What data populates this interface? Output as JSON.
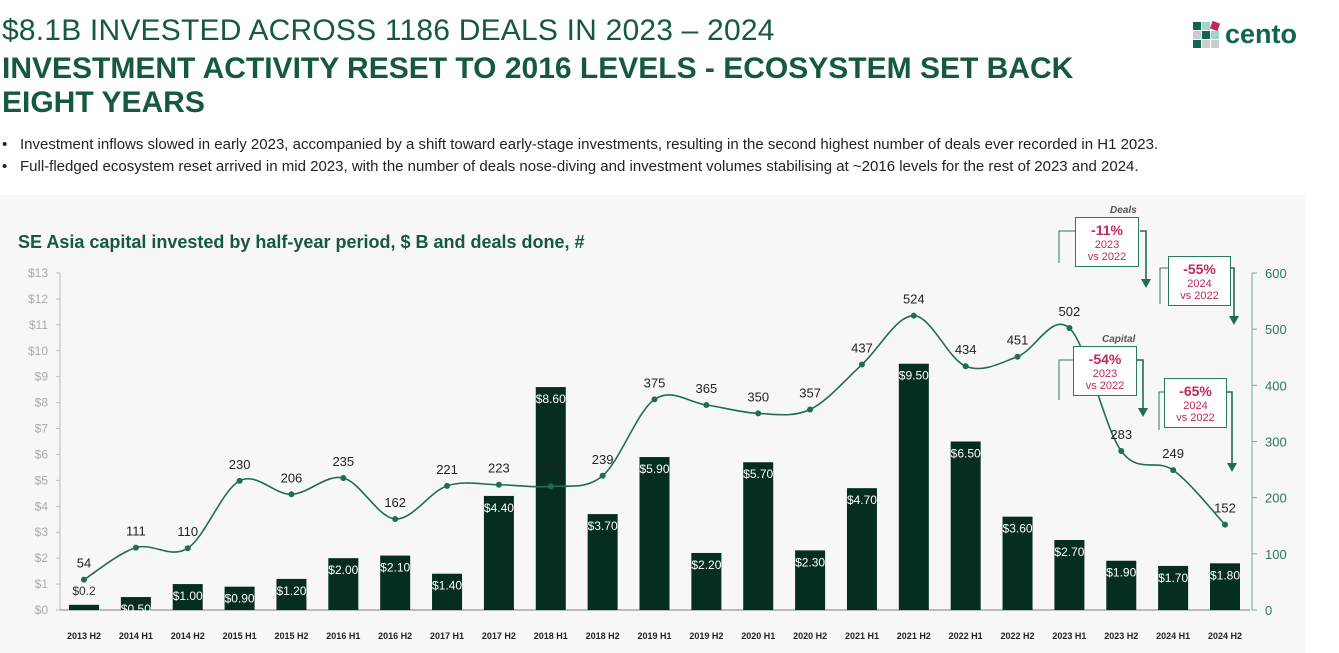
{
  "header": {
    "subtitle": "$8.1B INVESTED ACROSS 1186 DEALS IN 2023 – 2024",
    "title": "INVESTMENT ACTIVITY RESET TO 2016 LEVELS - ECOSYSTEM SET BACK EIGHT YEARS"
  },
  "logo": {
    "text": "cento"
  },
  "bullets": [
    "Investment inflows slowed in early 2023, accompanied by a shift toward early-stage investments, resulting in the second highest number of deals ever recorded in H1 2023.",
    "Full-fledged ecosystem reset arrived in mid 2023, with the number of deals nose-diving and investment volumes stabilising at ~2016 levels for the rest of 2023 and 2024."
  ],
  "annotations": {
    "deals_label": "Deals",
    "capital_label": "Capital",
    "deals_2023": {
      "pct": "-11%",
      "line1": "2023",
      "line2": "vs 2022"
    },
    "deals_2024": {
      "pct": "-55%",
      "line1": "2024",
      "line2": "vs 2022"
    },
    "capital_2023": {
      "pct": "-54%",
      "line1": "2023",
      "line2": "vs 2022"
    },
    "capital_2024": {
      "pct": "-65%",
      "line1": "2024",
      "line2": "vs 2022"
    }
  },
  "colors": {
    "bar": "#062d22",
    "line": "#1f6e4e",
    "title": "#155a3c",
    "accent": "#c0285a"
  },
  "chart_data": {
    "type": "bar+line",
    "title": "SE Asia capital invested by half-year period, $ B and deals done, #",
    "categories": [
      "2013 H2",
      "2014 H1",
      "2014 H2",
      "2015 H1",
      "2015 H2",
      "2016 H1",
      "2016 H2",
      "2017 H1",
      "2017 H2",
      "2018 H1",
      "2018 H2",
      "2019 H1",
      "2019 H2",
      "2020 H1",
      "2020 H2",
      "2021 H1",
      "2021 H2",
      "2022 H1",
      "2022 H2",
      "2023 H1",
      "2023 H2",
      "2024 H1",
      "2024 H2"
    ],
    "series": [
      {
        "name": "Capital invested ($B)",
        "axis": "left",
        "type": "bar",
        "values": [
          0.2,
          0.5,
          1.0,
          0.9,
          1.2,
          2.0,
          2.1,
          1.4,
          4.4,
          8.6,
          3.7,
          5.9,
          2.2,
          5.7,
          2.3,
          4.7,
          9.5,
          6.5,
          3.6,
          2.7,
          1.9,
          1.7,
          1.8
        ],
        "labels": [
          "$0.2",
          "$0.50",
          "$1.00",
          "$0.90",
          "$1.20",
          "$2.00",
          "$2.10",
          "$1.40",
          "$4.40",
          "$8.60",
          "$3.70",
          "$5.90",
          "$2.20",
          "$5.70",
          "$2.30",
          "$4.70",
          "$9.50",
          "$6.50",
          "$3.60",
          "$2.70",
          "$1.90",
          "$1.70",
          "$1.80"
        ]
      },
      {
        "name": "Deals done (#)",
        "axis": "right",
        "type": "line",
        "values": [
          54,
          111,
          110,
          230,
          206,
          235,
          162,
          221,
          223,
          220,
          239,
          375,
          365,
          350,
          357,
          437,
          524,
          434,
          451,
          502,
          283,
          249,
          152
        ]
      }
    ],
    "left_axis": {
      "ylim": [
        0,
        13
      ],
      "ticks": [
        "$0",
        "$1",
        "$2",
        "$3",
        "$4",
        "$5",
        "$6",
        "$7",
        "$8",
        "$9",
        "$10",
        "$11",
        "$12",
        "$13"
      ]
    },
    "right_axis": {
      "ylim": [
        0,
        600
      ],
      "ticks": [
        "0",
        "100",
        "200",
        "300",
        "400",
        "500",
        "600"
      ]
    }
  }
}
